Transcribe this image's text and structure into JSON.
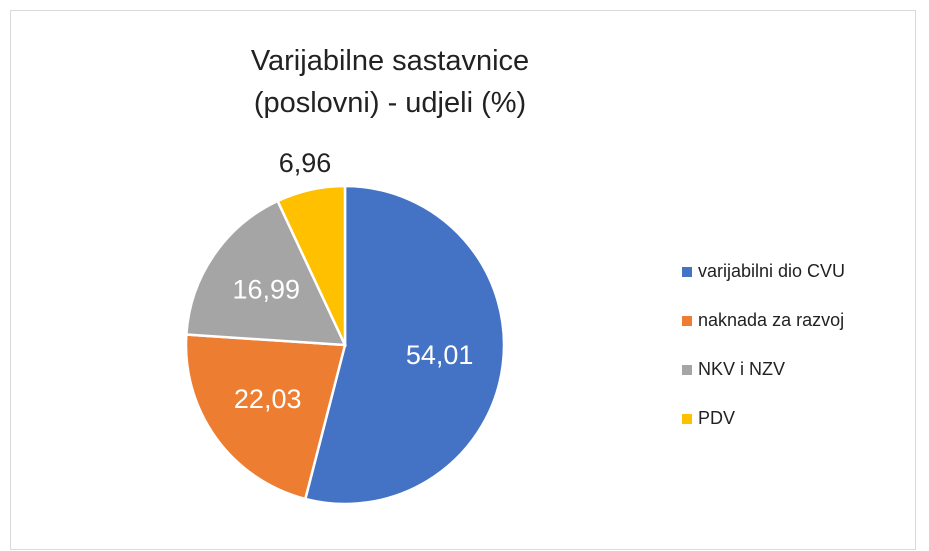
{
  "chart_data": {
    "type": "pie",
    "title": "Varijabilne sastavnice (poslovni) - udjeli (%)",
    "categories": [
      "varijabilni dio CVU",
      "naknada za razvoj",
      "NKV i NZV",
      "PDV"
    ],
    "values": [
      54.01,
      22.03,
      16.99,
      6.96
    ],
    "value_labels": [
      "54,01",
      "22,03",
      "16,99",
      "6,96"
    ],
    "colors": [
      "#4472c4",
      "#ed7d31",
      "#a5a5a5",
      "#ffc000"
    ],
    "legend": "right"
  }
}
